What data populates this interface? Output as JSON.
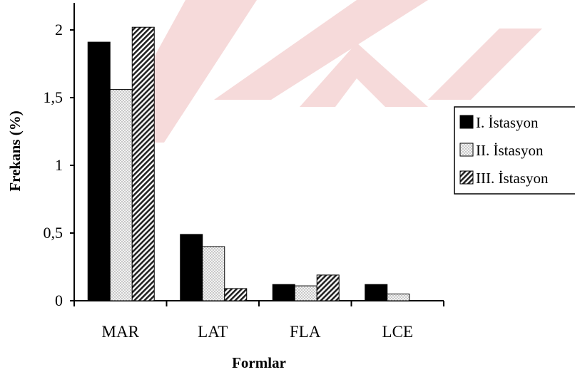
{
  "chart_data": {
    "type": "bar",
    "title": "",
    "xlabel": "Formlar",
    "ylabel": "Frekans (%)",
    "categories": [
      "MAR",
      "LAT",
      "FLA",
      "LCE"
    ],
    "series": [
      {
        "name": "I. İstasyon",
        "pattern": "solid",
        "color": "#000000",
        "values": [
          1.91,
          0.49,
          0.12,
          0.12
        ]
      },
      {
        "name": "II. İstasyon",
        "pattern": "dotted",
        "color": "#e6e6e6",
        "values": [
          1.56,
          0.4,
          0.11,
          0.05
        ]
      },
      {
        "name": "III. İstasyon",
        "pattern": "hatched",
        "color": "#666666",
        "values": [
          2.02,
          0.09,
          0.19,
          0
        ]
      }
    ],
    "ylim": [
      0,
      2
    ],
    "yticks": [
      0,
      0.5,
      1,
      1.5,
      2
    ],
    "ytick_labels": [
      "0",
      "0,5",
      "1",
      "1,5",
      "2"
    ],
    "grid": false,
    "legend_position": "right"
  }
}
